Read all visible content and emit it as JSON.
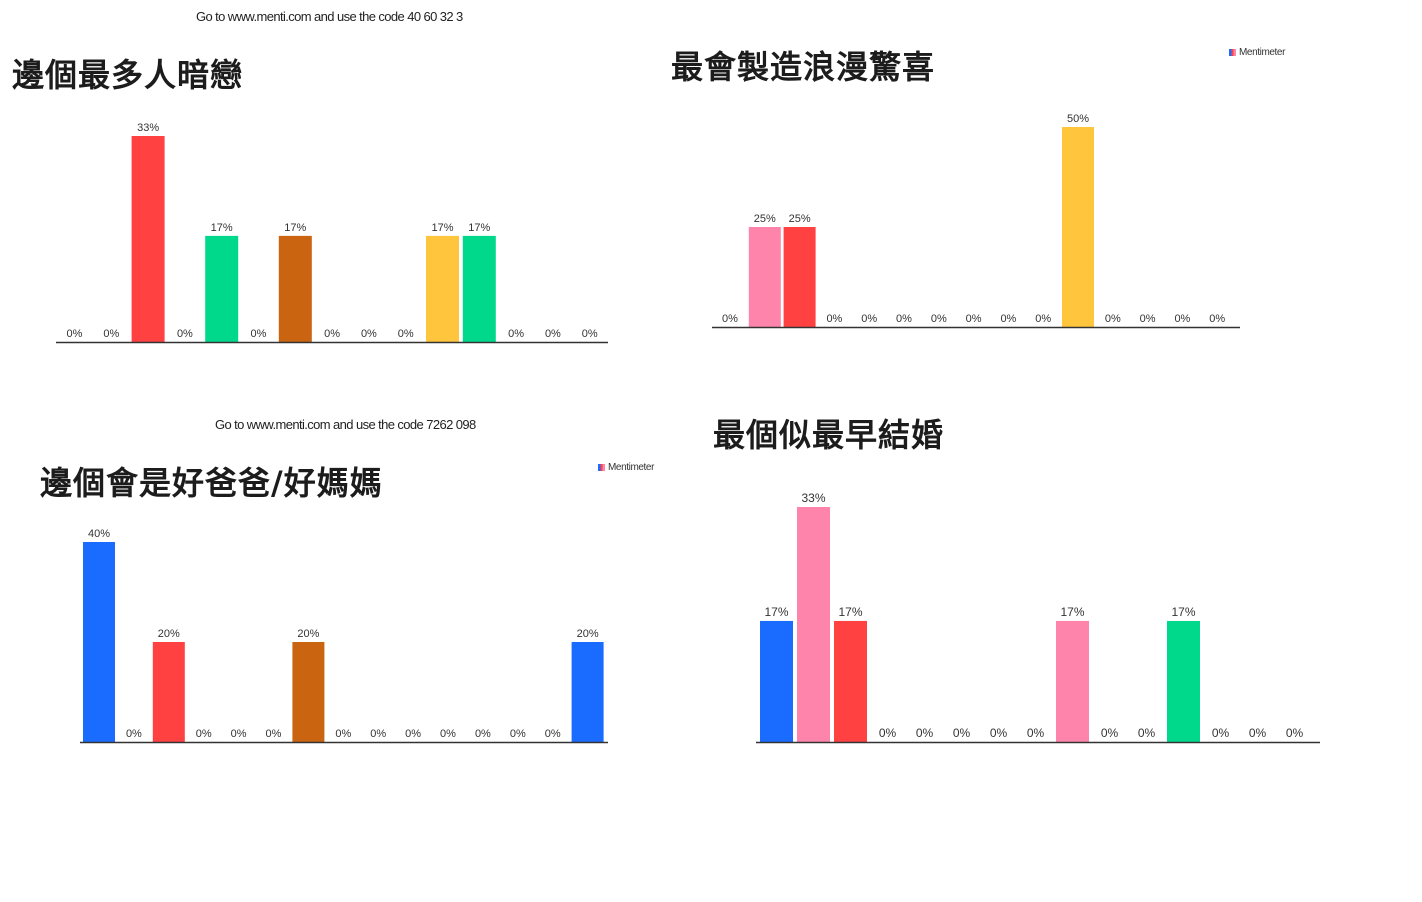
{
  "panels": {
    "top_left": {
      "code_text": "Go to www.menti.com and use the code 40 60 32 3",
      "title": "邊個最多人暗戀"
    },
    "top_right": {
      "title": "最會製造浪漫驚喜",
      "brand": "Mentimeter"
    },
    "bottom_left": {
      "code_text": "Go to www.menti.com and use the code 7262 098",
      "title": "邊個會是好爸爸/好媽媽",
      "brand": "Mentimeter"
    },
    "bottom_right": {
      "title": "最個似最早結婚"
    }
  },
  "colors": {
    "blue": "#196cff",
    "red": "#ff4141",
    "pink": "#ff84ac",
    "green": "#00d98b",
    "orange": "#ca6410",
    "yellow": "#ffc53d",
    "axis": "#333333"
  },
  "chart_data": [
    {
      "type": "bar",
      "title": "邊個最多人暗戀",
      "ylim": [
        0,
        33
      ],
      "values": [
        0,
        0,
        33,
        0,
        17,
        0,
        17,
        0,
        0,
        0,
        17,
        17,
        0,
        0,
        0
      ],
      "labels": [
        "0%",
        "0%",
        "33%",
        "0%",
        "17%",
        "0%",
        "17%",
        "0%",
        "0%",
        "0%",
        "17%",
        "17%",
        "0%",
        "0%",
        "0%"
      ],
      "colors": [
        "blue",
        "pink",
        "red",
        "green",
        "green",
        "orange",
        "orange",
        "blue",
        "pink",
        "red",
        "yellow",
        "green",
        "blue",
        "pink",
        "red"
      ]
    },
    {
      "type": "bar",
      "title": "最會製造浪漫驚喜",
      "ylim": [
        0,
        50
      ],
      "values": [
        0,
        25,
        25,
        0,
        0,
        0,
        0,
        0,
        0,
        0,
        50,
        0,
        0,
        0,
        0
      ],
      "labels": [
        "0%",
        "25%",
        "25%",
        "0%",
        "0%",
        "0%",
        "0%",
        "0%",
        "0%",
        "0%",
        "50%",
        "0%",
        "0%",
        "0%",
        "0%"
      ],
      "colors": [
        "blue",
        "pink",
        "red",
        "green",
        "orange",
        "yellow",
        "blue",
        "pink",
        "red",
        "green",
        "yellow",
        "blue",
        "pink",
        "red",
        "green"
      ]
    },
    {
      "type": "bar",
      "title": "邊個會是好爸爸/好媽媽",
      "ylim": [
        0,
        40
      ],
      "values": [
        40,
        0,
        20,
        0,
        0,
        0,
        20,
        0,
        0,
        0,
        0,
        0,
        0,
        0,
        20
      ],
      "labels": [
        "40%",
        "0%",
        "20%",
        "0%",
        "0%",
        "0%",
        "20%",
        "0%",
        "0%",
        "0%",
        "0%",
        "0%",
        "0%",
        "0%",
        "20%"
      ],
      "colors": [
        "blue",
        "pink",
        "red",
        "green",
        "yellow",
        "blue",
        "orange",
        "pink",
        "red",
        "green",
        "yellow",
        "blue",
        "pink",
        "red",
        "blue"
      ]
    },
    {
      "type": "bar",
      "title": "最個似最早結婚",
      "ylim": [
        0,
        33
      ],
      "values": [
        17,
        33,
        17,
        0,
        0,
        0,
        0,
        0,
        17,
        0,
        0,
        17,
        0,
        0,
        0
      ],
      "labels": [
        "17%",
        "33%",
        "17%",
        "0%",
        "0%",
        "0%",
        "0%",
        "0%",
        "17%",
        "0%",
        "0%",
        "17%",
        "0%",
        "0%",
        "0%"
      ],
      "colors": [
        "blue",
        "pink",
        "red",
        "green",
        "orange",
        "yellow",
        "blue",
        "pink",
        "pink",
        "red",
        "green",
        "green",
        "blue",
        "pink",
        "red"
      ]
    }
  ]
}
